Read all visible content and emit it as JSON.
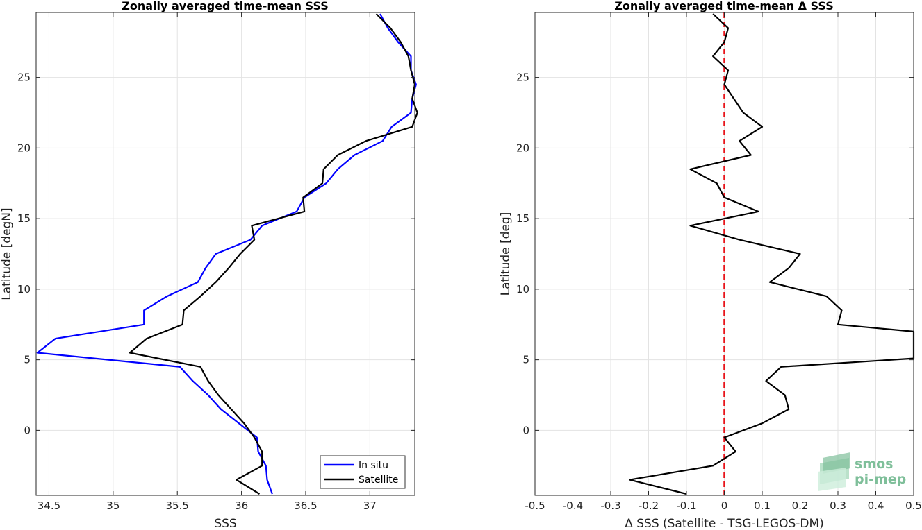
{
  "chart_data": [
    {
      "type": "line",
      "title": "Zonally averaged time-mean SSS",
      "xlabel": "SSS",
      "ylabel": "Latitude [degN]",
      "xlim": [
        34.4,
        37.35
      ],
      "ylim": [
        -4.6,
        29.6
      ],
      "xticks": [
        34.5,
        35,
        35.5,
        36,
        36.5,
        37
      ],
      "xtick_labels": [
        "34.5",
        "35",
        "35.5",
        "36",
        "36.5",
        "37"
      ],
      "yticks": [
        0,
        5,
        10,
        15,
        20,
        25
      ],
      "ytick_labels": [
        "0",
        "5",
        "10",
        "15",
        "20",
        "25"
      ],
      "grid": true,
      "legend_position": "bottom-right",
      "series": [
        {
          "name": "In situ",
          "color": "#0000ff",
          "points": [
            [
              36.24,
              -4.5
            ],
            [
              36.2,
              -3.5
            ],
            [
              36.19,
              -2.5
            ],
            [
              36.13,
              -1.5
            ],
            [
              36.12,
              -0.5
            ],
            [
              35.98,
              0.5
            ],
            [
              35.84,
              1.5
            ],
            [
              35.74,
              2.5
            ],
            [
              35.62,
              3.5
            ],
            [
              35.52,
              4.5
            ],
            [
              34.41,
              5.5
            ],
            [
              34.55,
              6.5
            ],
            [
              35.24,
              7.5
            ],
            [
              35.24,
              8.5
            ],
            [
              35.42,
              9.5
            ],
            [
              35.66,
              10.5
            ],
            [
              35.72,
              11.5
            ],
            [
              35.8,
              12.5
            ],
            [
              36.07,
              13.5
            ],
            [
              36.16,
              14.5
            ],
            [
              36.43,
              15.5
            ],
            [
              36.49,
              16.5
            ],
            [
              36.66,
              17.5
            ],
            [
              36.75,
              18.5
            ],
            [
              36.88,
              19.5
            ],
            [
              37.1,
              20.5
            ],
            [
              37.17,
              21.5
            ],
            [
              37.32,
              22.5
            ],
            [
              37.33,
              23.5
            ],
            [
              37.36,
              24.5
            ],
            [
              37.32,
              25.5
            ],
            [
              37.32,
              26.5
            ],
            [
              37.22,
              27.5
            ],
            [
              37.14,
              28.5
            ],
            [
              37.08,
              29.5
            ]
          ]
        },
        {
          "name": "Satellite",
          "color": "#000000",
          "points": [
            [
              36.14,
              -4.5
            ],
            [
              35.96,
              -3.5
            ],
            [
              36.16,
              -2.5
            ],
            [
              36.16,
              -1.5
            ],
            [
              36.1,
              -0.5
            ],
            [
              36.02,
              0.5
            ],
            [
              35.92,
              1.5
            ],
            [
              35.82,
              2.5
            ],
            [
              35.74,
              3.5
            ],
            [
              35.68,
              4.5
            ],
            [
              35.13,
              5.5
            ],
            [
              35.26,
              6.5
            ],
            [
              35.54,
              7.5
            ],
            [
              35.55,
              8.5
            ],
            [
              35.68,
              9.5
            ],
            [
              35.8,
              10.5
            ],
            [
              35.9,
              11.5
            ],
            [
              35.99,
              12.5
            ],
            [
              36.1,
              13.5
            ],
            [
              36.08,
              14.5
            ],
            [
              36.49,
              15.5
            ],
            [
              36.48,
              16.5
            ],
            [
              36.63,
              17.5
            ],
            [
              36.64,
              18.5
            ],
            [
              36.75,
              19.5
            ],
            [
              36.97,
              20.5
            ],
            [
              37.33,
              21.5
            ],
            [
              37.37,
              22.5
            ],
            [
              37.33,
              23.5
            ],
            [
              37.35,
              24.5
            ],
            [
              37.32,
              25.5
            ],
            [
              37.3,
              26.5
            ],
            [
              37.24,
              27.5
            ],
            [
              37.16,
              28.5
            ],
            [
              37.05,
              29.5
            ]
          ]
        }
      ]
    },
    {
      "type": "line",
      "title": "Zonally averaged time-mean Δ SSS",
      "xlabel": "Δ SSS (Satellite - TSG-LEGOS-DM)",
      "ylabel": "Latitude [deg]",
      "xlim": [
        -0.5,
        0.5
      ],
      "ylim": [
        -4.6,
        29.6
      ],
      "xticks": [
        -0.5,
        -0.4,
        -0.3,
        -0.2,
        -0.1,
        0,
        0.1,
        0.2,
        0.3,
        0.4,
        0.5
      ],
      "xtick_labels": [
        "-0.5",
        "-0.4",
        "-0.3",
        "-0.2",
        "-0.1",
        "0",
        "0.1",
        "0.2",
        "0.3",
        "0.4",
        "0.5"
      ],
      "yticks": [
        0,
        5,
        10,
        15,
        20,
        25
      ],
      "ytick_labels": [
        "0",
        "5",
        "10",
        "15",
        "20",
        "25"
      ],
      "grid": true,
      "reference_line": {
        "x": 0,
        "color": "#e8141a",
        "style": "dashed"
      },
      "series": [
        {
          "name": "",
          "color": "#000000",
          "points": [
            [
              -0.1,
              -4.5
            ],
            [
              -0.25,
              -3.5
            ],
            [
              -0.03,
              -2.5
            ],
            [
              0.03,
              -1.5
            ],
            [
              0.0,
              -0.5
            ],
            [
              0.1,
              0.5
            ],
            [
              0.17,
              1.5
            ],
            [
              0.16,
              2.5
            ],
            [
              0.11,
              3.5
            ],
            [
              0.15,
              4.5
            ],
            [
              0.5,
              5.1
            ],
            [
              0.5,
              7.0
            ],
            [
              0.3,
              7.5
            ],
            [
              0.31,
              8.5
            ],
            [
              0.27,
              9.5
            ],
            [
              0.12,
              10.5
            ],
            [
              0.17,
              11.5
            ],
            [
              0.2,
              12.5
            ],
            [
              0.04,
              13.5
            ],
            [
              -0.09,
              14.5
            ],
            [
              0.09,
              15.5
            ],
            [
              0.0,
              16.5
            ],
            [
              -0.02,
              17.5
            ],
            [
              -0.09,
              18.5
            ],
            [
              0.07,
              19.5
            ],
            [
              0.04,
              20.5
            ],
            [
              0.1,
              21.5
            ],
            [
              0.05,
              22.5
            ],
            [
              0.0,
              24.5
            ],
            [
              0.01,
              25.5
            ],
            [
              -0.03,
              26.5
            ],
            [
              0.0,
              27.5
            ],
            [
              0.01,
              28.5
            ],
            [
              -0.03,
              29.5
            ]
          ]
        }
      ]
    }
  ],
  "logo": {
    "line1": "smos",
    "line2": "pi-mep",
    "color": "#7fbf9a"
  }
}
